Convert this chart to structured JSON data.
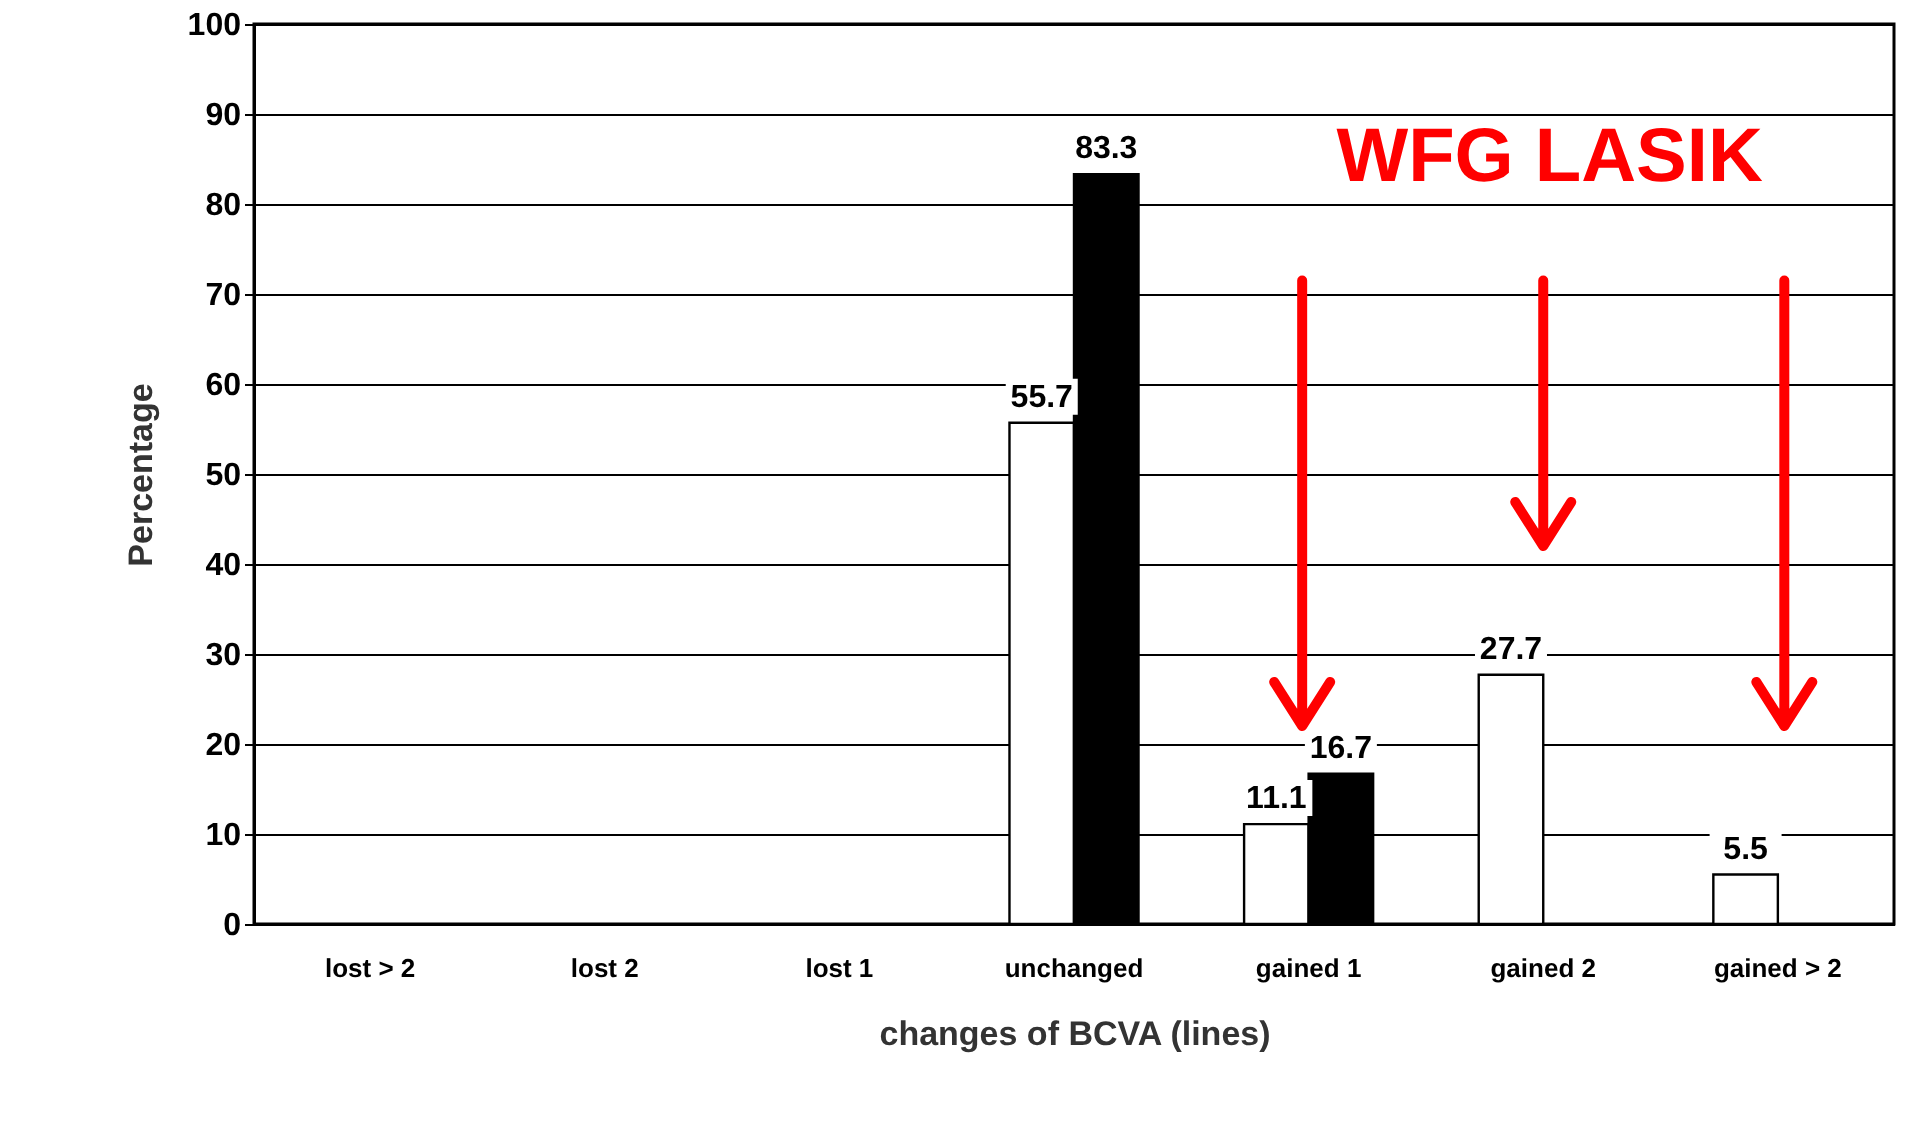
{
  "chart_data": {
    "type": "bar",
    "xlabel": "changes of BCVA (lines)",
    "ylabel": "Percentage",
    "categories": [
      "lost > 2",
      "lost 2",
      "lost 1",
      "unchanged",
      "gained 1",
      "gained 2",
      "gained > 2"
    ],
    "series": [
      {
        "color": "#ffffff",
        "values": [
          null,
          null,
          null,
          55.7,
          11.1,
          27.7,
          5.5
        ]
      },
      {
        "color": "#000000",
        "values": [
          null,
          null,
          null,
          83.3,
          16.7,
          null,
          null
        ]
      }
    ],
    "ylim": [
      0,
      100
    ],
    "yticks": [
      0,
      10,
      20,
      30,
      40,
      50,
      60,
      70,
      80,
      90,
      100
    ],
    "grid": "y",
    "data_labels": true,
    "annotations": [
      "WFG LASIK"
    ]
  }
}
